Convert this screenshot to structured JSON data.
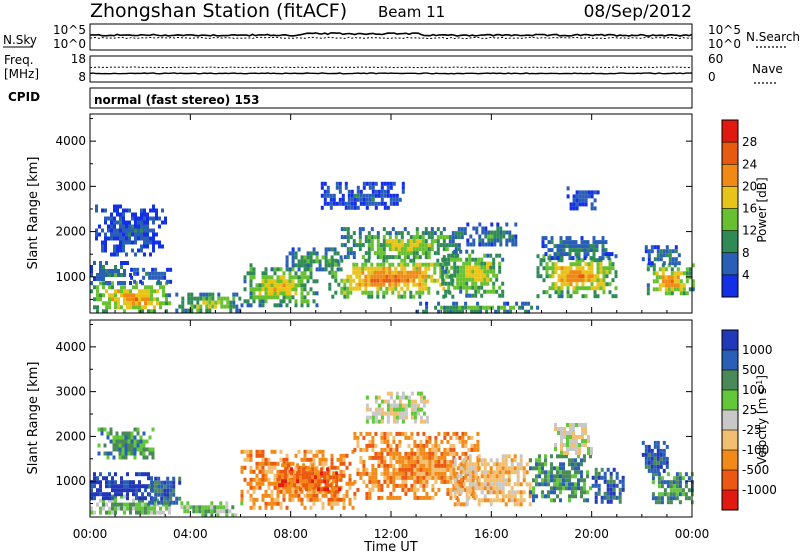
{
  "header": {
    "station": "Zhongshan Station (fitACF)",
    "beam": "Beam 11",
    "date": "08/Sep/2012"
  },
  "strip1": {
    "left_label": "N.Sky",
    "left_ticks": [
      "10^5",
      "10^0"
    ],
    "right_ticks": [
      "10^5",
      "10^0"
    ],
    "right_label": "N.Search"
  },
  "strip2": {
    "left_label_line1": "Freq.",
    "left_label_line2": "[MHz]",
    "left_ticks": [
      "18",
      "8"
    ],
    "right_ticks": [
      "60",
      "0"
    ],
    "right_label": "Nave"
  },
  "cpid": {
    "label": "CPID",
    "text": "normal (fast stereo) 153"
  },
  "x_axis": {
    "title": "Time UT",
    "ticks": [
      "00:00",
      "04:00",
      "08:00",
      "12:00",
      "16:00",
      "20:00",
      "00:00"
    ]
  },
  "colors": {
    "power": [
      "#1430e6",
      "#2a5fb8",
      "#2f8a55",
      "#66c030",
      "#e8c31a",
      "#f08a15",
      "#e85a10",
      "#e01a10"
    ],
    "velocity": [
      "#e01a10",
      "#ea5812",
      "#f28a18",
      "#f2be70",
      "#c8c8c8",
      "#62c83a",
      "#4a8a58",
      "#2a5fb8",
      "#2238b8"
    ]
  },
  "chart_data": [
    {
      "type": "heatmap",
      "title": "Power",
      "ylabel": "Slant Range [km]",
      "xlabel": "Time UT",
      "ylim": [
        200,
        4600
      ],
      "yticks": [
        "1000",
        "2000",
        "3000",
        "4000"
      ],
      "colorbar": {
        "label": "Power [dB]",
        "ticks": [
          "4",
          "8",
          "12",
          "16",
          "20",
          "24",
          "28"
        ],
        "range": [
          0,
          32
        ]
      },
      "blobs": [
        {
          "t0": 0.0,
          "t1": 3.2,
          "r0": 250,
          "r1": 900,
          "v": 22
        },
        {
          "t0": 0.0,
          "t1": 1.6,
          "r0": 900,
          "r1": 1350,
          "v": 10
        },
        {
          "t0": 1.6,
          "t1": 3.2,
          "r0": 900,
          "r1": 1200,
          "v": 8
        },
        {
          "t0": 0.2,
          "t1": 3.0,
          "r0": 1500,
          "r1": 2600,
          "v": 6
        },
        {
          "t0": 3.4,
          "t1": 6.0,
          "r0": 250,
          "r1": 650,
          "v": 16
        },
        {
          "t0": 6.0,
          "t1": 9.0,
          "r0": 400,
          "r1": 1300,
          "v": 18
        },
        {
          "t0": 7.8,
          "t1": 10.0,
          "r0": 1150,
          "r1": 1650,
          "v": 12
        },
        {
          "t0": 9.5,
          "t1": 14.5,
          "r0": 600,
          "r1": 1400,
          "v": 24
        },
        {
          "t0": 10.0,
          "t1": 15.0,
          "r0": 1400,
          "r1": 2100,
          "v": 16
        },
        {
          "t0": 9.2,
          "t1": 12.5,
          "r0": 2500,
          "r1": 3100,
          "v": 6
        },
        {
          "t0": 14.0,
          "t1": 16.5,
          "r0": 600,
          "r1": 1600,
          "v": 18
        },
        {
          "t0": 15.0,
          "t1": 17.0,
          "r0": 1700,
          "r1": 2200,
          "v": 10
        },
        {
          "t0": 13.0,
          "t1": 18.0,
          "r0": 250,
          "r1": 450,
          "v": 14
        },
        {
          "t0": 17.8,
          "t1": 21.0,
          "r0": 600,
          "r1": 1500,
          "v": 22
        },
        {
          "t0": 18.0,
          "t1": 20.8,
          "r0": 1400,
          "r1": 1900,
          "v": 10
        },
        {
          "t0": 19.0,
          "t1": 20.2,
          "r0": 2500,
          "r1": 3000,
          "v": 6
        },
        {
          "t0": 22.2,
          "t1": 24.0,
          "r0": 600,
          "r1": 1300,
          "v": 22
        },
        {
          "t0": 22.0,
          "t1": 23.5,
          "r0": 1300,
          "r1": 1700,
          "v": 10
        }
      ]
    },
    {
      "type": "heatmap",
      "title": "Velocity",
      "ylabel": "Slant Range [km]",
      "xlabel": "Time UT",
      "ylim": [
        200,
        4600
      ],
      "yticks": [
        "1000",
        "2000",
        "3000",
        "4000"
      ],
      "colorbar": {
        "label": "Velocity [m s^-1]",
        "ticks": [
          "1000",
          "500",
          "100",
          "25",
          "-25",
          "-100",
          "-500",
          "-1000"
        ]
      },
      "blobs": [
        {
          "t0": 0.0,
          "t1": 3.2,
          "r0": 300,
          "r1": 700,
          "c": 5
        },
        {
          "t0": 0.0,
          "t1": 2.5,
          "r0": 600,
          "r1": 1200,
          "c": 8
        },
        {
          "t0": 2.2,
          "t1": 3.6,
          "r0": 500,
          "r1": 1100,
          "c": 7
        },
        {
          "t0": 0.3,
          "t1": 2.5,
          "r0": 1500,
          "r1": 2200,
          "c": 6
        },
        {
          "t0": 3.6,
          "t1": 6.0,
          "r0": 250,
          "r1": 550,
          "c": 5
        },
        {
          "t0": 6.0,
          "t1": 10.5,
          "r0": 400,
          "r1": 1700,
          "c": 2
        },
        {
          "t0": 7.5,
          "t1": 10.0,
          "r0": 800,
          "r1": 1400,
          "c": 1
        },
        {
          "t0": 10.5,
          "t1": 15.5,
          "r0": 600,
          "r1": 2100,
          "c": 2
        },
        {
          "t0": 11.0,
          "t1": 13.5,
          "r0": 2300,
          "r1": 3000,
          "c": 4
        },
        {
          "t0": 14.5,
          "t1": 17.5,
          "r0": 500,
          "r1": 1600,
          "c": 3
        },
        {
          "t0": 17.5,
          "t1": 20.0,
          "r0": 600,
          "r1": 1600,
          "c": 6
        },
        {
          "t0": 18.5,
          "t1": 20.0,
          "r0": 1600,
          "r1": 2300,
          "c": 4
        },
        {
          "t0": 20.0,
          "t1": 21.2,
          "r0": 500,
          "r1": 1300,
          "c": 7
        },
        {
          "t0": 22.4,
          "t1": 24.0,
          "r0": 500,
          "r1": 1200,
          "c": 6
        },
        {
          "t0": 22.0,
          "t1": 23.0,
          "r0": 1200,
          "r1": 1900,
          "c": 7
        }
      ]
    }
  ]
}
